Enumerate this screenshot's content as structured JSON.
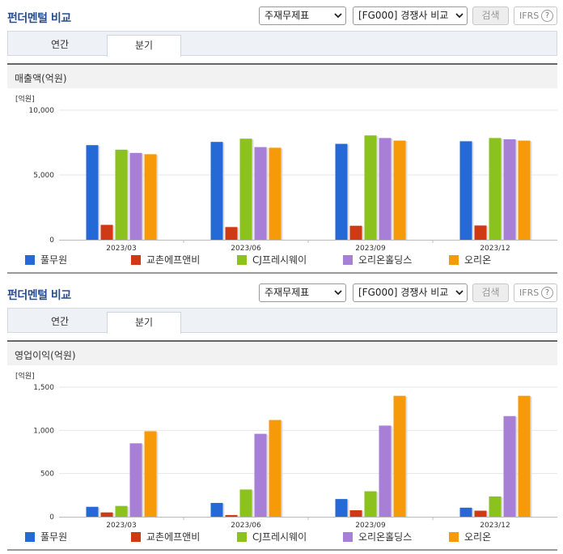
{
  "header": {
    "title": "펀더멘털 비교",
    "select_statement": "주재무제표",
    "select_compare": "[FG000] 경쟁사 비교",
    "search_label": "검색",
    "ifrs_label": "IFRS",
    "help_glyph": "?"
  },
  "tabs": {
    "annual": "연간",
    "quarterly": "분기",
    "active": "분기"
  },
  "colors": {
    "풀무원": "#2469d6",
    "교촌에프앤비": "#cf3a14",
    "CJ프레시웨이": "#8cc21d",
    "오리온홀딩스": "#a77fd6",
    "오리온": "#f79a0a"
  },
  "icons": {
    "select_arrow": "chevron-down-icon",
    "help": "question-circle-icon"
  },
  "chart_data": [
    {
      "type": "bar",
      "title": "매출액(억원)",
      "unit_label": "[억원]",
      "categories": [
        "2023/03",
        "2023/06",
        "2023/09",
        "2023/12"
      ],
      "ylim": [
        0,
        10000
      ],
      "yticks": [
        "0",
        "5,000",
        "10,000"
      ],
      "ytick_values": [
        0,
        5000,
        10000
      ],
      "grid": true,
      "legend": "bottom",
      "series": [
        {
          "name": "풀무원",
          "values": [
            7300,
            7550,
            7400,
            7600
          ]
        },
        {
          "name": "교촌에프앤비",
          "values": [
            1150,
            980,
            1080,
            1100
          ]
        },
        {
          "name": "CJ프레시웨이",
          "values": [
            6950,
            7800,
            8050,
            7850
          ]
        },
        {
          "name": "오리온홀딩스",
          "values": [
            6700,
            7150,
            7850,
            7750
          ]
        },
        {
          "name": "오리온",
          "values": [
            6600,
            7100,
            7650,
            7650
          ]
        }
      ]
    },
    {
      "type": "bar",
      "title": "영업이익(억원)",
      "unit_label": "[억원]",
      "categories": [
        "2023/03",
        "2023/06",
        "2023/09",
        "2023/12"
      ],
      "ylim": [
        0,
        1500
      ],
      "yticks": [
        "0",
        "500",
        "1,000",
        "1,500"
      ],
      "ytick_values": [
        0,
        500,
        1000,
        1500
      ],
      "grid": true,
      "legend": "bottom",
      "series": [
        {
          "name": "풀무원",
          "values": [
            115,
            160,
            205,
            105
          ]
        },
        {
          "name": "교촌에프앤비",
          "values": [
            50,
            20,
            75,
            70
          ]
        },
        {
          "name": "CJ프레시웨이",
          "values": [
            125,
            315,
            295,
            235
          ]
        },
        {
          "name": "오리온홀딩스",
          "values": [
            850,
            960,
            1055,
            1165
          ]
        },
        {
          "name": "오리온",
          "values": [
            990,
            1120,
            1400,
            1400
          ]
        }
      ]
    }
  ]
}
